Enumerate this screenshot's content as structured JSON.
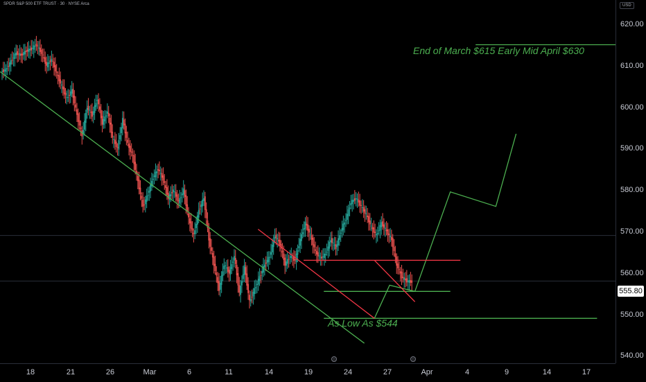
{
  "header": {
    "symbol_title": "SPDR S&P 500 ETF TRUST · 30 · NYSE Arca"
  },
  "price_axis": {
    "currency": "USD",
    "ticks": [
      "620.00",
      "610.00",
      "600.00",
      "590.00",
      "580.00",
      "570.00",
      "560.00",
      "550.00",
      "540.00"
    ],
    "last_price": "555.80"
  },
  "time_axis": {
    "ticks": [
      "18",
      "21",
      "26",
      "Mar",
      "6",
      "11",
      "14",
      "19",
      "24",
      "27",
      "Apr",
      "4",
      "9",
      "14",
      "17"
    ],
    "event_markers": [
      "⊙",
      "⊙"
    ]
  },
  "annotations": {
    "target_note": "End of March $615 Early Mid April $630",
    "low_note": "As Low As $544"
  },
  "colors": {
    "up": "#26a69a",
    "down": "#ef5350",
    "trendline_green": "#4caf50",
    "trendline_red": "#f23645",
    "background": "#000000"
  },
  "chart_data": {
    "type": "candlestick",
    "title": "",
    "ylim": [
      538,
      626
    ],
    "last_price": 555.8,
    "price_path": [
      606.5,
      607.0,
      609.0,
      611.0,
      610.5,
      611.5,
      612.0,
      613.0,
      611.0,
      608.0,
      609.5,
      606.0,
      603.0,
      600.0,
      602.0,
      596.0,
      591.0,
      598.0,
      596.0,
      600.0,
      594.0,
      597.0,
      590.5,
      588.0,
      595.0,
      589.0,
      586.0,
      580.0,
      574.0,
      577.0,
      581.0,
      583.0,
      580.5,
      576.0,
      578.0,
      575.0,
      578.0,
      571.0,
      567.0,
      573.0,
      576.0,
      566.0,
      560.0,
      554.0,
      560.0,
      558.0,
      562.0,
      553.0,
      559.5,
      551.0,
      554.0,
      557.0,
      560.0,
      562.0,
      567.0,
      565.0,
      560.0,
      562.0,
      561.0,
      566.0,
      570.0,
      567.0,
      563.0,
      561.5,
      562.5,
      566.0,
      564.0,
      568.0,
      571.0,
      575.0,
      576.0,
      574.0,
      572.0,
      569.0,
      567.0,
      570.0,
      568.0,
      566.0,
      560.0,
      557.0,
      556.0,
      555.8
    ],
    "horizontal_levels": [
      567.0,
      556.0
    ],
    "drawings": [
      {
        "color": "green",
        "points": [
          [
            0,
            606.5
          ],
          [
            72,
            541
          ]
        ]
      },
      {
        "color": "green",
        "points": [
          [
            64,
            547
          ],
          [
            118,
            547
          ]
        ]
      },
      {
        "color": "green",
        "points": [
          [
            64,
            553.5
          ],
          [
            89,
            553.5
          ]
        ]
      },
      {
        "color": "green",
        "points": [
          [
            74,
            547
          ],
          [
            77,
            555
          ],
          [
            82,
            553.5
          ],
          [
            89,
            577.5
          ],
          [
            98,
            574
          ],
          [
            102,
            591.5
          ]
        ]
      },
      {
        "color": "green",
        "points": [
          [
            94,
            613
          ],
          [
            140,
            613
          ]
        ]
      },
      {
        "color": "red",
        "points": [
          [
            51,
            568.5
          ],
          [
            74,
            547
          ]
        ]
      },
      {
        "color": "red",
        "points": [
          [
            60,
            561
          ],
          [
            91,
            561
          ]
        ]
      },
      {
        "color": "red",
        "points": [
          [
            74,
            561
          ],
          [
            82,
            551
          ]
        ]
      }
    ]
  }
}
